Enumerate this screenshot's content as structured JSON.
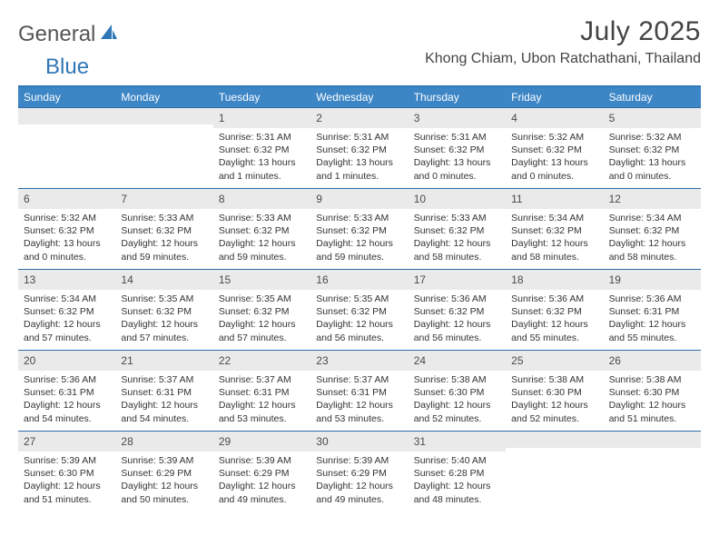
{
  "colors": {
    "brand_blue": "#2f77b6",
    "header_blue": "#3d86c6",
    "daynum_bg": "#eaeaea",
    "text": "#333333",
    "logo_gray": "#555555",
    "rule": "#2f6da8",
    "background": "#ffffff"
  },
  "logo": {
    "part1": "General",
    "part2": "Blue"
  },
  "title": "July 2025",
  "location": "Khong Chiam, Ubon Ratchathani, Thailand",
  "weekdays": [
    "Sunday",
    "Monday",
    "Tuesday",
    "Wednesday",
    "Thursday",
    "Friday",
    "Saturday"
  ],
  "weeks": [
    [
      null,
      null,
      {
        "n": "1",
        "sunrise": "5:31 AM",
        "sunset": "6:32 PM",
        "dl1": "13 hours",
        "dl2": "and 1 minutes."
      },
      {
        "n": "2",
        "sunrise": "5:31 AM",
        "sunset": "6:32 PM",
        "dl1": "13 hours",
        "dl2": "and 1 minutes."
      },
      {
        "n": "3",
        "sunrise": "5:31 AM",
        "sunset": "6:32 PM",
        "dl1": "13 hours",
        "dl2": "and 0 minutes."
      },
      {
        "n": "4",
        "sunrise": "5:32 AM",
        "sunset": "6:32 PM",
        "dl1": "13 hours",
        "dl2": "and 0 minutes."
      },
      {
        "n": "5",
        "sunrise": "5:32 AM",
        "sunset": "6:32 PM",
        "dl1": "13 hours",
        "dl2": "and 0 minutes."
      }
    ],
    [
      {
        "n": "6",
        "sunrise": "5:32 AM",
        "sunset": "6:32 PM",
        "dl1": "13 hours",
        "dl2": "and 0 minutes."
      },
      {
        "n": "7",
        "sunrise": "5:33 AM",
        "sunset": "6:32 PM",
        "dl1": "12 hours",
        "dl2": "and 59 minutes."
      },
      {
        "n": "8",
        "sunrise": "5:33 AM",
        "sunset": "6:32 PM",
        "dl1": "12 hours",
        "dl2": "and 59 minutes."
      },
      {
        "n": "9",
        "sunrise": "5:33 AM",
        "sunset": "6:32 PM",
        "dl1": "12 hours",
        "dl2": "and 59 minutes."
      },
      {
        "n": "10",
        "sunrise": "5:33 AM",
        "sunset": "6:32 PM",
        "dl1": "12 hours",
        "dl2": "and 58 minutes."
      },
      {
        "n": "11",
        "sunrise": "5:34 AM",
        "sunset": "6:32 PM",
        "dl1": "12 hours",
        "dl2": "and 58 minutes."
      },
      {
        "n": "12",
        "sunrise": "5:34 AM",
        "sunset": "6:32 PM",
        "dl1": "12 hours",
        "dl2": "and 58 minutes."
      }
    ],
    [
      {
        "n": "13",
        "sunrise": "5:34 AM",
        "sunset": "6:32 PM",
        "dl1": "12 hours",
        "dl2": "and 57 minutes."
      },
      {
        "n": "14",
        "sunrise": "5:35 AM",
        "sunset": "6:32 PM",
        "dl1": "12 hours",
        "dl2": "and 57 minutes."
      },
      {
        "n": "15",
        "sunrise": "5:35 AM",
        "sunset": "6:32 PM",
        "dl1": "12 hours",
        "dl2": "and 57 minutes."
      },
      {
        "n": "16",
        "sunrise": "5:35 AM",
        "sunset": "6:32 PM",
        "dl1": "12 hours",
        "dl2": "and 56 minutes."
      },
      {
        "n": "17",
        "sunrise": "5:36 AM",
        "sunset": "6:32 PM",
        "dl1": "12 hours",
        "dl2": "and 56 minutes."
      },
      {
        "n": "18",
        "sunrise": "5:36 AM",
        "sunset": "6:32 PM",
        "dl1": "12 hours",
        "dl2": "and 55 minutes."
      },
      {
        "n": "19",
        "sunrise": "5:36 AM",
        "sunset": "6:31 PM",
        "dl1": "12 hours",
        "dl2": "and 55 minutes."
      }
    ],
    [
      {
        "n": "20",
        "sunrise": "5:36 AM",
        "sunset": "6:31 PM",
        "dl1": "12 hours",
        "dl2": "and 54 minutes."
      },
      {
        "n": "21",
        "sunrise": "5:37 AM",
        "sunset": "6:31 PM",
        "dl1": "12 hours",
        "dl2": "and 54 minutes."
      },
      {
        "n": "22",
        "sunrise": "5:37 AM",
        "sunset": "6:31 PM",
        "dl1": "12 hours",
        "dl2": "and 53 minutes."
      },
      {
        "n": "23",
        "sunrise": "5:37 AM",
        "sunset": "6:31 PM",
        "dl1": "12 hours",
        "dl2": "and 53 minutes."
      },
      {
        "n": "24",
        "sunrise": "5:38 AM",
        "sunset": "6:30 PM",
        "dl1": "12 hours",
        "dl2": "and 52 minutes."
      },
      {
        "n": "25",
        "sunrise": "5:38 AM",
        "sunset": "6:30 PM",
        "dl1": "12 hours",
        "dl2": "and 52 minutes."
      },
      {
        "n": "26",
        "sunrise": "5:38 AM",
        "sunset": "6:30 PM",
        "dl1": "12 hours",
        "dl2": "and 51 minutes."
      }
    ],
    [
      {
        "n": "27",
        "sunrise": "5:39 AM",
        "sunset": "6:30 PM",
        "dl1": "12 hours",
        "dl2": "and 51 minutes."
      },
      {
        "n": "28",
        "sunrise": "5:39 AM",
        "sunset": "6:29 PM",
        "dl1": "12 hours",
        "dl2": "and 50 minutes."
      },
      {
        "n": "29",
        "sunrise": "5:39 AM",
        "sunset": "6:29 PM",
        "dl1": "12 hours",
        "dl2": "and 49 minutes."
      },
      {
        "n": "30",
        "sunrise": "5:39 AM",
        "sunset": "6:29 PM",
        "dl1": "12 hours",
        "dl2": "and 49 minutes."
      },
      {
        "n": "31",
        "sunrise": "5:40 AM",
        "sunset": "6:28 PM",
        "dl1": "12 hours",
        "dl2": "and 48 minutes."
      },
      null,
      null
    ]
  ],
  "labels": {
    "sunrise": "Sunrise:",
    "sunset": "Sunset:",
    "daylight": "Daylight:"
  }
}
